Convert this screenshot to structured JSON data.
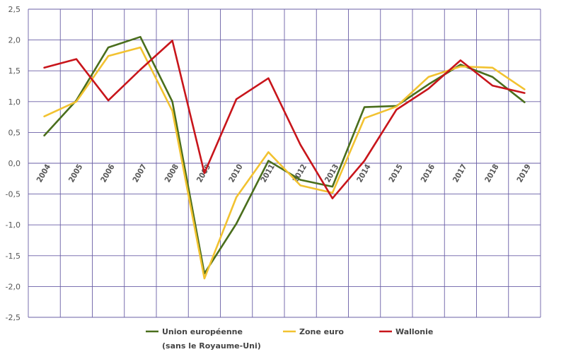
{
  "chart_data": {
    "type": "line",
    "title": "",
    "xlabel": "",
    "ylabel": "",
    "categories": [
      "2004",
      "2005",
      "2006",
      "2007",
      "2008",
      "2009",
      "2010",
      "2011",
      "2012",
      "2013",
      "2014",
      "2015",
      "2016",
      "2017",
      "2018",
      "2019"
    ],
    "ylim": [
      -2.5,
      2.5
    ],
    "yticks": [
      2.5,
      2.0,
      1.5,
      1.0,
      0.5,
      0.0,
      -0.5,
      -1.0,
      -1.5,
      -2.0,
      -2.5
    ],
    "ytick_labels": [
      "2,5",
      "2,0",
      "1,5",
      "1,0",
      "0,5",
      "0,0",
      "-0,5",
      "-1,0",
      "-1,5",
      "-2,0",
      "-2,5"
    ],
    "grid": true,
    "legend_position": "bottom",
    "series": [
      {
        "name": "Union européenne",
        "name_line2": "(sans le Royaume-Uni)",
        "color": "#4a6e1c",
        "values": [
          0.45,
          1.02,
          1.88,
          2.05,
          1.0,
          -1.79,
          -0.98,
          0.04,
          -0.27,
          -0.38,
          0.91,
          0.93,
          1.28,
          1.6,
          1.4,
          0.99
        ]
      },
      {
        "name": "Zone euro",
        "color": "#f2c230",
        "values": [
          0.76,
          1.0,
          1.74,
          1.88,
          0.85,
          -1.87,
          -0.55,
          0.18,
          -0.36,
          -0.48,
          0.73,
          0.92,
          1.4,
          1.57,
          1.55,
          1.2
        ]
      },
      {
        "name": "Wallonie",
        "color": "#c8151b",
        "values": [
          1.55,
          1.69,
          1.02,
          1.52,
          1.99,
          -0.16,
          1.04,
          1.38,
          0.3,
          -0.57,
          0.04,
          0.87,
          1.21,
          1.67,
          1.26,
          1.14
        ]
      }
    ]
  }
}
